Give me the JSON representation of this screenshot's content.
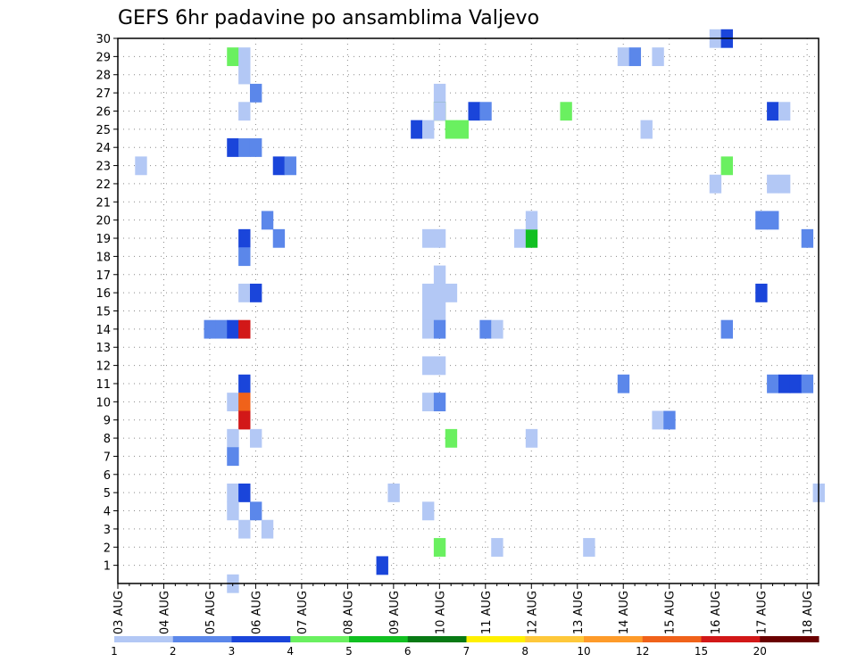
{
  "chart_data": {
    "type": "heatmap",
    "title": "GEFS 6hr padavine po ansamblima Valjevo",
    "y_ticks": [
      "1",
      "2",
      "3",
      "4",
      "5",
      "6",
      "7",
      "8",
      "9",
      "10",
      "11",
      "12",
      "13",
      "14",
      "15",
      "16",
      "17",
      "18",
      "19",
      "20",
      "21",
      "22",
      "23",
      "24",
      "25",
      "26",
      "27",
      "28",
      "29",
      "30"
    ],
    "x_ticks": [
      "03 AUG",
      "04 AUG",
      "05 AUG",
      "06 AUG",
      "07 AUG",
      "08 AUG",
      "09 AUG",
      "10 AUG",
      "11 AUG",
      "12 AUG",
      "13 AUG",
      "14 AUG",
      "15 AUG",
      "16 AUG",
      "17 AUG",
      "18 AUG"
    ],
    "x_range_steps": [
      0,
      61
    ],
    "y_range": [
      0,
      30
    ],
    "grid": true,
    "colorbar": {
      "labels": [
        "1",
        "2",
        "3",
        "4",
        "5",
        "6",
        "7",
        "8",
        "10",
        "12",
        "15",
        "20"
      ],
      "colors": [
        "#b3c8f5",
        "#5b87ea",
        "#1a45da",
        "#6af060",
        "#11c021",
        "#087a14",
        "#fff000",
        "#fec83a",
        "#fe9b2a",
        "#f0621a",
        "#d21818",
        "#6a0000"
      ]
    },
    "cells": [
      {
        "t": 10,
        "m": 29,
        "l": 4
      },
      {
        "t": 11,
        "m": 29,
        "l": 1
      },
      {
        "t": 11,
        "m": 28,
        "l": 1
      },
      {
        "t": 12,
        "m": 27,
        "l": 2
      },
      {
        "t": 11,
        "m": 26,
        "l": 1
      },
      {
        "t": 28,
        "m": 27,
        "l": 1
      },
      {
        "t": 28,
        "m": 26,
        "l": 6
      },
      {
        "t": 28,
        "m": 26,
        "l": 1
      },
      {
        "t": 31,
        "m": 26,
        "l": 3
      },
      {
        "t": 32,
        "m": 26,
        "l": 2
      },
      {
        "t": 39,
        "m": 26,
        "l": 4
      },
      {
        "t": 26,
        "m": 25,
        "l": 3
      },
      {
        "t": 27,
        "m": 25,
        "l": 1
      },
      {
        "t": 29,
        "m": 25,
        "l": 4
      },
      {
        "t": 30,
        "m": 25,
        "l": 4
      },
      {
        "t": 10,
        "m": 24,
        "l": 3
      },
      {
        "t": 11,
        "m": 24,
        "l": 2
      },
      {
        "t": 12,
        "m": 24,
        "l": 2
      },
      {
        "t": 2,
        "m": 23,
        "l": 1
      },
      {
        "t": 14,
        "m": 23,
        "l": 3
      },
      {
        "t": 15,
        "m": 23,
        "l": 2
      },
      {
        "t": 11,
        "m": 19,
        "l": 3
      },
      {
        "t": 14,
        "m": 19,
        "l": 2
      },
      {
        "t": 13,
        "m": 20,
        "l": 2
      },
      {
        "t": 11,
        "m": 18,
        "l": 2
      },
      {
        "t": 27,
        "m": 19,
        "l": 1
      },
      {
        "t": 28,
        "m": 19,
        "l": 1
      },
      {
        "t": 35,
        "m": 19,
        "l": 1
      },
      {
        "t": 36,
        "m": 19,
        "l": 5
      },
      {
        "t": 36,
        "m": 20,
        "l": 1
      },
      {
        "t": 28,
        "m": 17,
        "l": 1
      },
      {
        "t": 28,
        "m": 16,
        "l": 1
      },
      {
        "t": 11,
        "m": 16,
        "l": 1
      },
      {
        "t": 12,
        "m": 16,
        "l": 3
      },
      {
        "t": 27,
        "m": 16,
        "l": 1
      },
      {
        "t": 28,
        "m": 15,
        "l": 1
      },
      {
        "t": 29,
        "m": 16,
        "l": 1
      },
      {
        "t": 8,
        "m": 14,
        "l": 2
      },
      {
        "t": 9,
        "m": 14,
        "l": 2
      },
      {
        "t": 10,
        "m": 14,
        "l": 3
      },
      {
        "t": 11,
        "m": 14,
        "l": 11
      },
      {
        "t": 27,
        "m": 15,
        "l": 1
      },
      {
        "t": 27,
        "m": 14,
        "l": 1
      },
      {
        "t": 28,
        "m": 14,
        "l": 2
      },
      {
        "t": 32,
        "m": 14,
        "l": 2
      },
      {
        "t": 33,
        "m": 14,
        "l": 1
      },
      {
        "t": 27,
        "m": 12,
        "l": 1
      },
      {
        "t": 28,
        "m": 12,
        "l": 1
      },
      {
        "t": 11,
        "m": 11,
        "l": 3
      },
      {
        "t": 10,
        "m": 10,
        "l": 1
      },
      {
        "t": 11,
        "m": 10,
        "l": 10
      },
      {
        "t": 11,
        "m": 9,
        "l": 11
      },
      {
        "t": 27,
        "m": 10,
        "l": 1
      },
      {
        "t": 28,
        "m": 10,
        "l": 2
      },
      {
        "t": 10,
        "m": 8,
        "l": 1
      },
      {
        "t": 12,
        "m": 8,
        "l": 1
      },
      {
        "t": 10,
        "m": 7,
        "l": 2
      },
      {
        "t": 29,
        "m": 8,
        "l": 4
      },
      {
        "t": 36,
        "m": 8,
        "l": 1
      },
      {
        "t": 10,
        "m": 5,
        "l": 1
      },
      {
        "t": 11,
        "m": 5,
        "l": 3
      },
      {
        "t": 10,
        "m": 4,
        "l": 1
      },
      {
        "t": 12,
        "m": 4,
        "l": 2
      },
      {
        "t": 11,
        "m": 3,
        "l": 1
      },
      {
        "t": 13,
        "m": 3,
        "l": 1
      },
      {
        "t": 24,
        "m": 5,
        "l": 1
      },
      {
        "t": 27,
        "m": 4,
        "l": 1
      },
      {
        "t": 28,
        "m": 2,
        "l": 4
      },
      {
        "t": 33,
        "m": 2,
        "l": 1
      },
      {
        "t": 41,
        "m": 2,
        "l": 1
      },
      {
        "t": 23,
        "m": 1,
        "l": 3
      },
      {
        "t": 10,
        "m": 0,
        "l": 1
      },
      {
        "t": 44,
        "m": 29,
        "l": 1
      },
      {
        "t": 45,
        "m": 29,
        "l": 2
      },
      {
        "t": 47,
        "m": 29,
        "l": 1
      },
      {
        "t": 52,
        "m": 30,
        "l": 1
      },
      {
        "t": 53,
        "m": 30,
        "l": 3
      },
      {
        "t": 46,
        "m": 25,
        "l": 1
      },
      {
        "t": 53,
        "m": 23,
        "l": 4
      },
      {
        "t": 52,
        "m": 22,
        "l": 1
      },
      {
        "t": 57,
        "m": 26,
        "l": 3
      },
      {
        "t": 58,
        "m": 26,
        "l": 1
      },
      {
        "t": 57,
        "m": 22,
        "l": 1
      },
      {
        "t": 58,
        "m": 22,
        "l": 1
      },
      {
        "t": 56,
        "m": 20,
        "l": 2
      },
      {
        "t": 57,
        "m": 20,
        "l": 2
      },
      {
        "t": 60,
        "m": 19,
        "l": 2
      },
      {
        "t": 56,
        "m": 16,
        "l": 3
      },
      {
        "t": 53,
        "m": 14,
        "l": 2
      },
      {
        "t": 44,
        "m": 11,
        "l": 2
      },
      {
        "t": 57,
        "m": 11,
        "l": 2
      },
      {
        "t": 58,
        "m": 11,
        "l": 3
      },
      {
        "t": 59,
        "m": 11,
        "l": 3
      },
      {
        "t": 60,
        "m": 11,
        "l": 2
      },
      {
        "t": 47,
        "m": 9,
        "l": 1
      },
      {
        "t": 48,
        "m": 9,
        "l": 2
      },
      {
        "t": 61,
        "m": 5,
        "l": 1
      }
    ]
  }
}
